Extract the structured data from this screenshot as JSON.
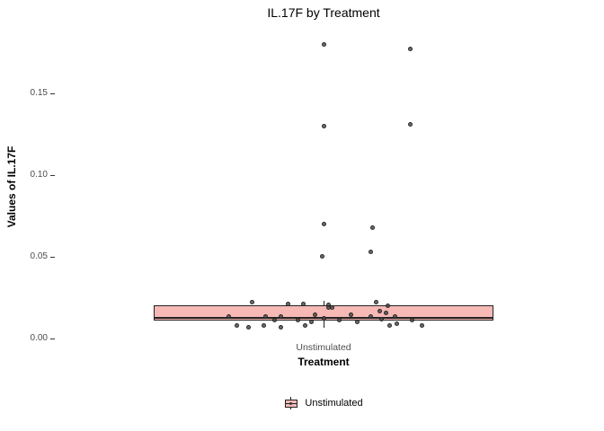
{
  "title": "IL.17F by Treatment",
  "axes": {
    "x_label": "Treatment",
    "y_label": "Values of IL.17F",
    "x_tick": "Unstimulated"
  },
  "legend": {
    "label": "Unstimulated"
  },
  "colors": {
    "box_fill": "#F6B9B5",
    "box_border": "#222222",
    "point": "#464646",
    "tick_text": "#4d4d4d"
  },
  "chart_data": {
    "type": "boxplot",
    "title": "IL.17F by Treatment",
    "xlabel": "Treatment",
    "ylabel": "Values of IL.17F",
    "categories": [
      "Unstimulated"
    ],
    "ylim": [
      0,
      0.185
    ],
    "yticks": [
      0.0,
      0.05,
      0.1,
      0.15
    ],
    "grid": false,
    "legend_position": "bottom",
    "box": {
      "lower": 0.011,
      "median": 0.0125,
      "upper": 0.0205,
      "whisker_low": 0.0066,
      "whisker_high": 0.023
    },
    "points": [
      {
        "j": 0.0,
        "v": 0.18
      },
      {
        "j": 0.51,
        "v": 0.177
      },
      {
        "j": 0.0,
        "v": 0.13
      },
      {
        "j": 0.51,
        "v": 0.131
      },
      {
        "j": 0.0,
        "v": 0.07
      },
      {
        "j": 0.29,
        "v": 0.068
      },
      {
        "j": 0.28,
        "v": 0.053
      },
      {
        "j": -0.01,
        "v": 0.05
      },
      {
        "j": -0.42,
        "v": 0.022
      },
      {
        "j": -0.21,
        "v": 0.021
      },
      {
        "j": -0.12,
        "v": 0.021
      },
      {
        "j": 0.03,
        "v": 0.0205
      },
      {
        "j": 0.31,
        "v": 0.022
      },
      {
        "j": 0.38,
        "v": 0.02
      },
      {
        "j": 0.03,
        "v": 0.019
      },
      {
        "j": 0.05,
        "v": 0.019
      },
      {
        "j": 0.33,
        "v": 0.017
      },
      {
        "j": 0.37,
        "v": 0.0155
      },
      {
        "j": -0.56,
        "v": 0.0137
      },
      {
        "j": -0.34,
        "v": 0.0132
      },
      {
        "j": -0.25,
        "v": 0.0132
      },
      {
        "j": -0.05,
        "v": 0.0143
      },
      {
        "j": 0.0,
        "v": 0.0126
      },
      {
        "j": 0.16,
        "v": 0.0143
      },
      {
        "j": 0.28,
        "v": 0.0137
      },
      {
        "j": 0.34,
        "v": 0.012
      },
      {
        "j": 0.42,
        "v": 0.0132
      },
      {
        "j": -0.29,
        "v": 0.011
      },
      {
        "j": -0.15,
        "v": 0.011
      },
      {
        "j": -0.07,
        "v": 0.0104
      },
      {
        "j": 0.09,
        "v": 0.011
      },
      {
        "j": 0.2,
        "v": 0.0104
      },
      {
        "j": 0.52,
        "v": 0.011
      },
      {
        "j": -0.51,
        "v": 0.0082
      },
      {
        "j": -0.44,
        "v": 0.0071
      },
      {
        "j": -0.35,
        "v": 0.0077
      },
      {
        "j": -0.25,
        "v": 0.0066
      },
      {
        "j": -0.11,
        "v": 0.0082
      },
      {
        "j": 0.39,
        "v": 0.0082
      },
      {
        "j": 0.43,
        "v": 0.0088
      },
      {
        "j": 0.58,
        "v": 0.0077
      }
    ]
  }
}
